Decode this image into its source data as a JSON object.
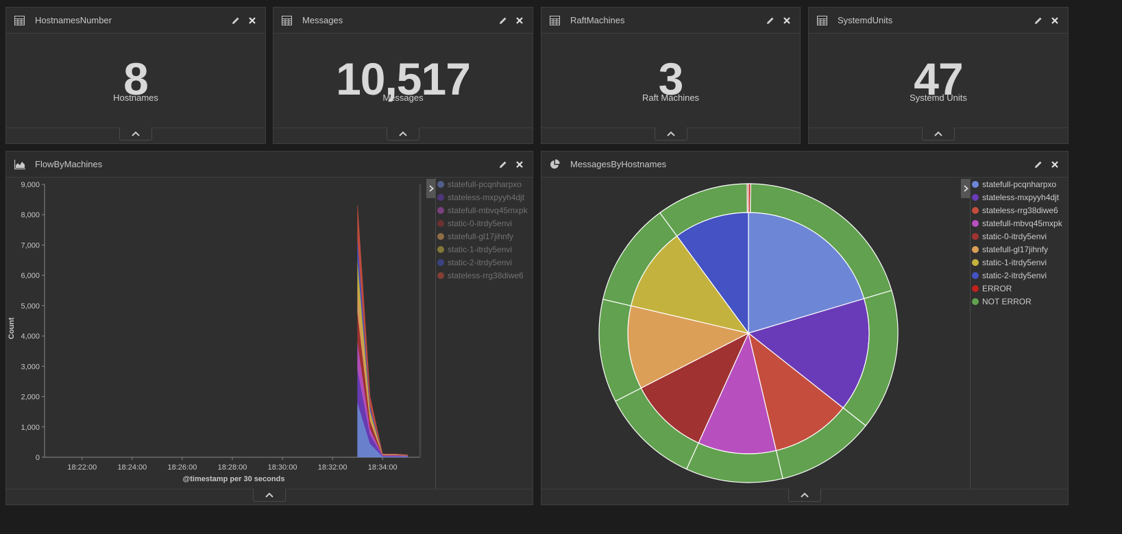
{
  "metrics": [
    {
      "title": "HostnamesNumber",
      "value": "8",
      "label": "Hostnames"
    },
    {
      "title": "Messages",
      "value": "10,517",
      "label": "Messages"
    },
    {
      "title": "RaftMachines",
      "value": "3",
      "label": "Raft Machines"
    },
    {
      "title": "SystemdUnits",
      "value": "47",
      "label": "Systemd Units"
    }
  ],
  "flow": {
    "title": "FlowByMachines",
    "legend": [
      {
        "label": "statefull-pcqnharpxo",
        "color": "#6d86d6"
      },
      {
        "label": "stateless-mxpyyh4djt",
        "color": "#6a3bb8"
      },
      {
        "label": "statefull-mbvq45mxpk",
        "color": "#b84fbf"
      },
      {
        "label": "static-0-itrdy5envi",
        "color": "#a03232"
      },
      {
        "label": "statefull-gl17jihnfy",
        "color": "#dc9f58"
      },
      {
        "label": "static-1-itrdy5envi",
        "color": "#c4b23e"
      },
      {
        "label": "static-2-itrdy5envi",
        "color": "#4452c4"
      },
      {
        "label": "stateless-rrg38diwe6",
        "color": "#c54d3d"
      }
    ]
  },
  "pie": {
    "title": "MessagesByHostnames",
    "legend": [
      {
        "label": "statefull-pcqnharpxo",
        "color": "#6d86d6"
      },
      {
        "label": "stateless-mxpyyh4djt",
        "color": "#6a3bb8"
      },
      {
        "label": "stateless-rrg38diwe6",
        "color": "#c54d3d"
      },
      {
        "label": "statefull-mbvq45mxpk",
        "color": "#b84fbf"
      },
      {
        "label": "static-0-itrdy5envi",
        "color": "#a03232"
      },
      {
        "label": "statefull-gl17jihnfy",
        "color": "#dc9f58"
      },
      {
        "label": "static-1-itrdy5envi",
        "color": "#c4b23e"
      },
      {
        "label": "static-2-itrdy5envi",
        "color": "#4452c4"
      },
      {
        "label": "ERROR",
        "color": "#c0221b"
      },
      {
        "label": "NOT ERROR",
        "color": "#62a14f"
      }
    ]
  },
  "chart_data": [
    {
      "type": "area",
      "title": "FlowByMachines",
      "xlabel": "@timestamp per 30 seconds",
      "ylabel": "Count",
      "ylim": [
        0,
        9000
      ],
      "yticks": [
        "0",
        "1,000",
        "2,000",
        "3,000",
        "4,000",
        "5,000",
        "6,000",
        "7,000",
        "8,000",
        "9,000"
      ],
      "xticks": [
        "18:22:00",
        "18:24:00",
        "18:26:00",
        "18:28:00",
        "18:30:00",
        "18:32:00",
        "18:34:00"
      ],
      "x": [
        "18:33:00",
        "18:33:30",
        "18:34:00",
        "18:34:30",
        "18:35:00"
      ],
      "series": [
        {
          "name": "statefull-pcqnharpxo",
          "color": "#6d86d6",
          "values": [
            1800,
            450,
            30,
            30,
            30
          ]
        },
        {
          "name": "stateless-mxpyyh4djt",
          "color": "#6a3bb8",
          "values": [
            1100,
            300,
            20,
            20,
            10
          ]
        },
        {
          "name": "statefull-mbvq45mxpk",
          "color": "#b84fbf",
          "values": [
            900,
            200,
            15,
            15,
            10
          ]
        },
        {
          "name": "static-0-itrdy5envi",
          "color": "#a03232",
          "values": [
            1000,
            250,
            10,
            10,
            10
          ]
        },
        {
          "name": "statefull-gl17jihnfy",
          "color": "#dc9f58",
          "values": [
            900,
            200,
            10,
            10,
            5
          ]
        },
        {
          "name": "static-1-itrdy5envi",
          "color": "#c4b23e",
          "values": [
            800,
            150,
            10,
            10,
            5
          ]
        },
        {
          "name": "static-2-itrdy5envi",
          "color": "#4452c4",
          "values": [
            700,
            150,
            5,
            5,
            5
          ]
        },
        {
          "name": "stateless-rrg38diwe6",
          "color": "#c54d3d",
          "values": [
            1100,
            300,
            10,
            10,
            5
          ]
        }
      ]
    },
    {
      "type": "pie",
      "title": "MessagesByHostnames",
      "inner": [
        {
          "name": "statefull-pcqnharpxo",
          "color": "#6d86d6",
          "value": 2100
        },
        {
          "name": "stateless-mxpyyh4djt",
          "color": "#6a3bb8",
          "value": 1570
        },
        {
          "name": "stateless-rrg38diwe6",
          "color": "#c54d3d",
          "value": 1100
        },
        {
          "name": "statefull-mbvq45mxpk",
          "color": "#b84fbf",
          "value": 1080
        },
        {
          "name": "static-0-itrdy5envi",
          "color": "#a03232",
          "value": 1100
        },
        {
          "name": "statefull-gl17jihnfy",
          "color": "#dc9f58",
          "value": 1150
        },
        {
          "name": "static-1-itrdy5envi",
          "color": "#c4b23e",
          "value": 1160
        },
        {
          "name": "static-2-itrdy5envi",
          "color": "#4452c4",
          "value": 1040
        }
      ],
      "outer_by_host": [
        [
          {
            "name": "ERROR",
            "value": 25
          },
          {
            "name": "NOT ERROR",
            "value": 2075
          }
        ],
        [
          {
            "name": "NOT ERROR",
            "value": 1570
          }
        ],
        [
          {
            "name": "NOT ERROR",
            "value": 1100
          }
        ],
        [
          {
            "name": "NOT ERROR",
            "value": 1080
          }
        ],
        [
          {
            "name": "NOT ERROR",
            "value": 1100
          }
        ],
        [
          {
            "name": "NOT ERROR",
            "value": 1150
          }
        ],
        [
          {
            "name": "NOT ERROR",
            "value": 1160
          }
        ],
        [
          {
            "name": "NOT ERROR",
            "value": 1025
          },
          {
            "name": "ERROR",
            "value": 15
          }
        ]
      ],
      "colors": {
        "ERROR": "#c0221b",
        "NOT ERROR": "#62a14f"
      }
    }
  ]
}
